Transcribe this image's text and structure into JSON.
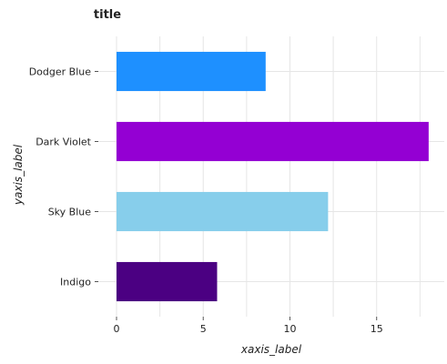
{
  "chart_data": {
    "type": "bar",
    "orientation": "horizontal",
    "title": "title",
    "xlabel": "xaxis_label",
    "ylabel": "yaxis_label",
    "categories": [
      "Indigo",
      "Sky Blue",
      "Dark Violet",
      "Dodger Blue"
    ],
    "values": [
      5.8,
      12.2,
      18,
      8.6
    ],
    "colors": [
      "#4b0082",
      "#87ceeb",
      "#9400d3",
      "#1e90ff"
    ],
    "xlim": [
      0,
      18.9
    ],
    "x_ticks": [
      0,
      5,
      10,
      15
    ],
    "x_tick_labels": [
      "0",
      "5",
      "10",
      "15"
    ],
    "grid": true,
    "legend": "none"
  }
}
